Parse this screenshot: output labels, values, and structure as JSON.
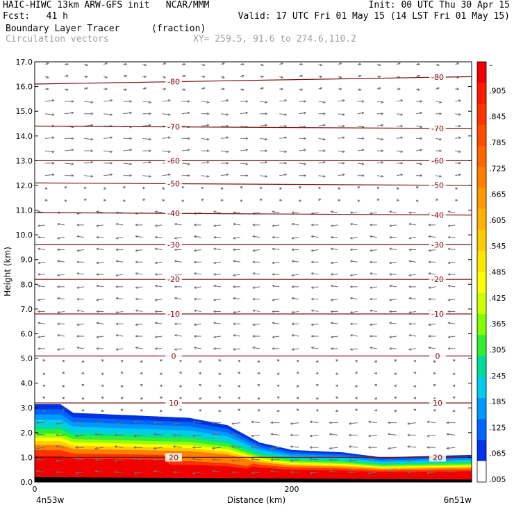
{
  "header": {
    "line1_left": "HAIC-HIWC 13km ARW-GFS init   NCAR/MMM",
    "line1_right": "Init: 00 UTC Thu 30 Apr 15",
    "line2_left": "Fcst:   41 h",
    "line2_right": "Valid: 17 UTC Fri 01 May 15 (14 LST Fri 01 May 15)",
    "line3_left": "Boundary Layer Tracer",
    "line3_mid": "(fraction)",
    "line4_left": "Circulation vectors",
    "line4_right": "XY= 259.5, 91.6 to 274.6,110.2"
  },
  "chart_data": {
    "type": "heatmap",
    "xlabel": "Distance (km)",
    "ylabel": "Height (km)",
    "xlim": [
      0,
      340
    ],
    "ylim": [
      0,
      17
    ],
    "x_ticks": [
      0,
      200
    ],
    "x_tick_labels": [
      "0",
      "200"
    ],
    "x_end_labels": {
      "left": "4n53w",
      "right": "6n51w"
    },
    "y_ticks": [
      "0.0",
      "1.0",
      "2.0",
      "3.0",
      "4.0",
      "5.0",
      "6.0",
      "7.0",
      "8.0",
      "9.0",
      "10.0",
      "11.0",
      "12.0",
      "13.0",
      "14.0",
      "15.0",
      "16.0",
      "17.0"
    ],
    "colorbar": {
      "labels": [
        "–",
        ".905",
        ".845",
        ".785",
        ".725",
        ".665",
        ".605",
        ".545",
        ".485",
        ".425",
        ".365",
        ".305",
        ".245",
        ".185",
        ".125",
        ".065",
        ".005"
      ],
      "colors": [
        "#f00000",
        "#ff1a00",
        "#ff3300",
        "#ff4d00",
        "#ff6600",
        "#ff8000",
        "#ff9900",
        "#ffb300",
        "#ffcc00",
        "#ffe600",
        "#ffff00",
        "#ccff00",
        "#80ff00",
        "#33ee33",
        "#00dd99",
        "#00ccee",
        "#0099ff",
        "#0066ff",
        "#0033ee",
        "#ffffff"
      ]
    },
    "temperature_contours": [
      {
        "label": "-80",
        "y": [
          16.1,
          16.4
        ]
      },
      {
        "label": "-70",
        "y": [
          14.4,
          14.3
        ]
      },
      {
        "label": "-60",
        "y": [
          13.0,
          13.0
        ]
      },
      {
        "label": "-50",
        "y": [
          12.1,
          12.0
        ]
      },
      {
        "label": "-40",
        "y": [
          10.9,
          10.8
        ]
      },
      {
        "label": "-30",
        "y": [
          9.6,
          9.6
        ]
      },
      {
        "label": "-20",
        "y": [
          8.2,
          8.2
        ]
      },
      {
        "label": "-10",
        "y": [
          6.8,
          6.8
        ]
      },
      {
        "label": "0",
        "y": [
          5.1,
          5.1
        ]
      },
      {
        "label": "10",
        "y": [
          3.2,
          3.2
        ]
      },
      {
        "label": "20",
        "y": [
          1.0,
          1.0
        ]
      }
    ],
    "tracer_top_km": [
      [
        0,
        3.15
      ],
      [
        20,
        3.15
      ],
      [
        30,
        2.8
      ],
      [
        120,
        2.6
      ],
      [
        150,
        2.3
      ],
      [
        175,
        1.6
      ],
      [
        200,
        1.3
      ],
      [
        240,
        1.2
      ],
      [
        270,
        1.0
      ],
      [
        340,
        1.1
      ]
    ],
    "terrain_km": [
      [
        0,
        0.2
      ],
      [
        340,
        0.1
      ]
    ]
  }
}
